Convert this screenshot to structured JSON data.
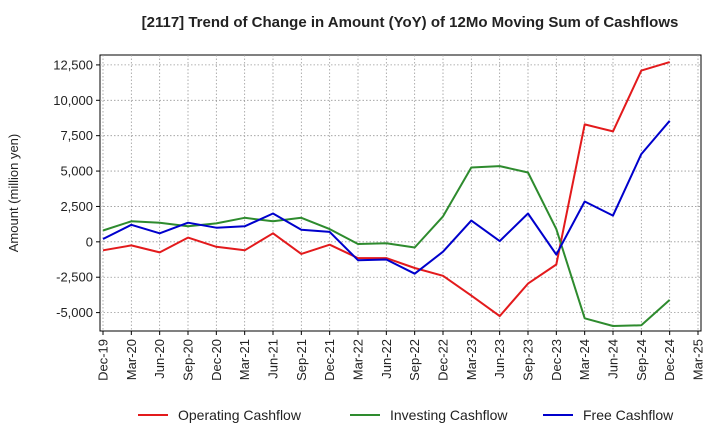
{
  "chart_data": {
    "type": "line",
    "title": "[2117]  Trend of Change in Amount (YoY) of 12Mo Moving Sum of Cashflows",
    "xlabel": "",
    "ylabel": "Amount (million yen)",
    "categories": [
      "Dec-19",
      "Mar-20",
      "Jun-20",
      "Sep-20",
      "Dec-20",
      "Mar-21",
      "Jun-21",
      "Sep-21",
      "Dec-21",
      "Mar-22",
      "Jun-22",
      "Sep-22",
      "Dec-22",
      "Mar-23",
      "Jun-23",
      "Sep-23",
      "Dec-23",
      "Mar-24",
      "Jun-24",
      "Sep-24",
      "Dec-24",
      "Mar-25"
    ],
    "ylim": [
      -6300,
      13200
    ],
    "yticks": [
      -5000,
      -2500,
      0,
      2500,
      5000,
      7500,
      10000,
      12500
    ],
    "ytick_labels": [
      "-5,000",
      "-2,500",
      "0",
      "2,500",
      "5,000",
      "7,500",
      "10,000",
      "12,500"
    ],
    "grid": true,
    "legend_position": "bottom",
    "series": [
      {
        "name": "Operating Cashflow",
        "color": "#e31a1c",
        "values": [
          -600,
          -250,
          -750,
          300,
          -350,
          -600,
          600,
          -850,
          -200,
          -1150,
          -1150,
          -1850,
          -2400,
          -3800,
          -5250,
          -2950,
          -1600,
          8300,
          7800,
          12100,
          12700,
          null
        ]
      },
      {
        "name": "Investing Cashflow",
        "color": "#2e8b2e",
        "values": [
          800,
          1450,
          1350,
          1100,
          1300,
          1700,
          1450,
          1700,
          900,
          -150,
          -100,
          -400,
          1800,
          5250,
          5350,
          4900,
          900,
          -5400,
          -5950,
          -5900,
          -4100,
          null
        ]
      },
      {
        "name": "Free Cashflow",
        "color": "#0000cc",
        "values": [
          200,
          1200,
          600,
          1350,
          1000,
          1100,
          2000,
          850,
          700,
          -1300,
          -1250,
          -2250,
          -700,
          1500,
          50,
          2000,
          -900,
          2850,
          1850,
          6200,
          8550,
          null
        ]
      }
    ]
  }
}
